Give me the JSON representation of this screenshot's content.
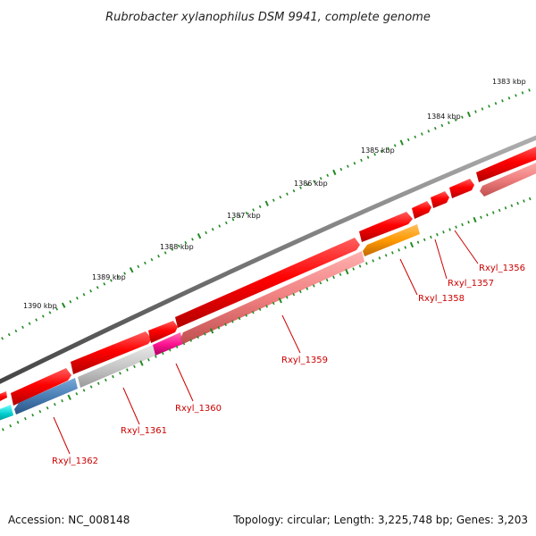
{
  "title": "Rubrobacter xylanophilus DSM 9941, complete genome",
  "footer": {
    "accession": "Accession: NC_008148",
    "summary": "Topology: circular; Length: 3,225,748 bp; Genes: 3,203"
  },
  "ticks": [
    "1383 kbp",
    "1384 kbp",
    "1385 kbp",
    "1386 kbp",
    "1387 kbp",
    "1388 kbp",
    "1389 kbp",
    "1390 kbp"
  ],
  "genes": [
    "Rxyl_1356",
    "Rxyl_1357",
    "Rxyl_1358",
    "Rxyl_1359",
    "Rxyl_1360",
    "Rxyl_1361",
    "Rxyl_1362"
  ],
  "colors": {
    "backbone": "#7a7a7a",
    "forward_gene": "#ee0000",
    "reverse_pink": "#f08080",
    "orange": "#ff9900",
    "magenta": "#ff1493",
    "gray": "#c8c8c8",
    "blue": "#4a7fb5",
    "cyan": "#00cccc",
    "tick": "#228b22",
    "label": "#cc0000"
  }
}
